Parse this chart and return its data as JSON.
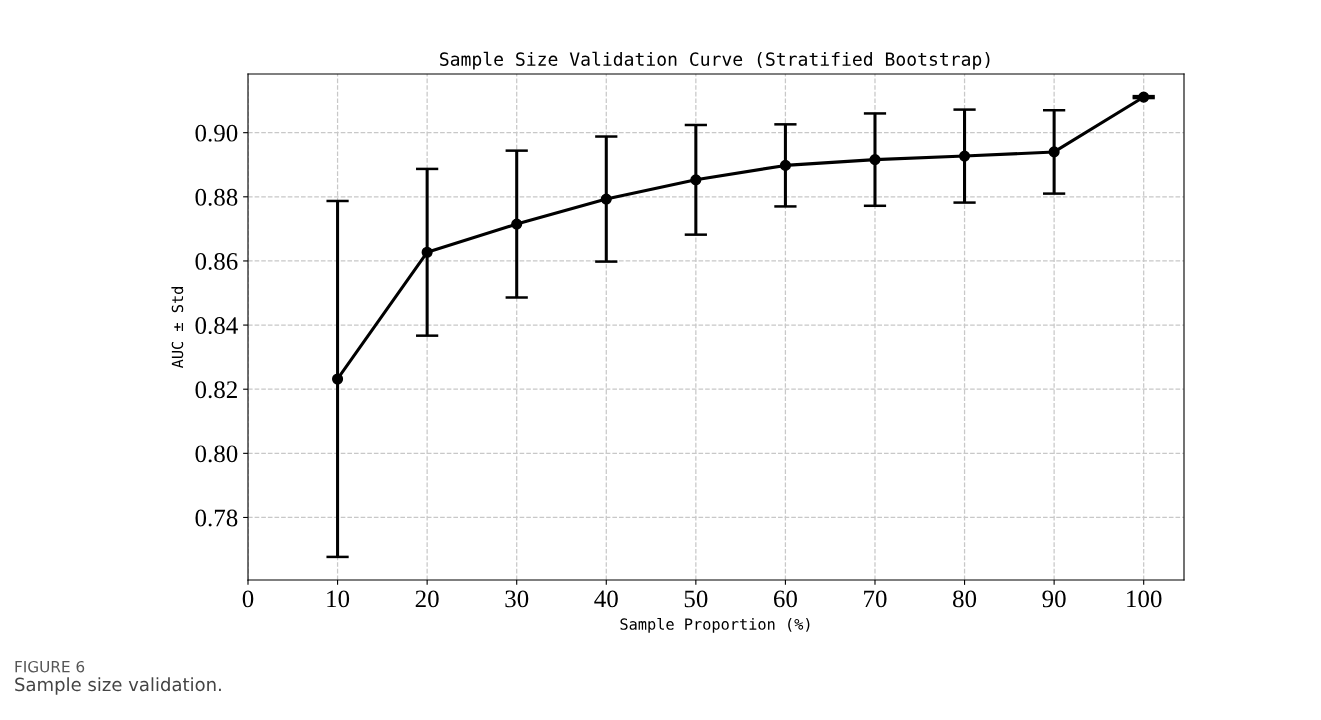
{
  "chart_data": {
    "type": "line",
    "title": "Sample Size Validation Curve (Stratified Bootstrap)",
    "xlabel": "Sample Proportion (%)",
    "ylabel": "AUC ± Std",
    "x": [
      10,
      20,
      30,
      40,
      50,
      60,
      70,
      80,
      90,
      100
    ],
    "series": [
      {
        "color": "#000000",
        "values": [
          0.8232,
          0.8627,
          0.8715,
          0.8793,
          0.8853,
          0.8898,
          0.8916,
          0.8927,
          0.894,
          0.9111
        ],
        "errors": [
          0.0555,
          0.026,
          0.0229,
          0.0195,
          0.0171,
          0.0128,
          0.0144,
          0.0145,
          0.013,
          0.0003
        ]
      }
    ],
    "marker": "circle",
    "line_style": "solid",
    "grid": true,
    "xlim": [
      0,
      104.5
    ],
    "xticks": [
      0,
      10,
      20,
      30,
      40,
      50,
      60,
      70,
      80,
      90,
      100
    ],
    "ylim": [
      0.7605,
      0.9183
    ],
    "yticks": [
      {
        "value": 0.78,
        "label": "0.78"
      },
      {
        "value": 0.8,
        "label": "0.80"
      },
      {
        "value": 0.82,
        "label": "0.82"
      },
      {
        "value": 0.84,
        "label": "0.84"
      },
      {
        "value": 0.86,
        "label": "0.86"
      },
      {
        "value": 0.88,
        "label": "0.88"
      },
      {
        "value": 0.9,
        "label": "0.90"
      }
    ],
    "annotations": [
      "FIGURE 6",
      "Sample size validation."
    ]
  }
}
